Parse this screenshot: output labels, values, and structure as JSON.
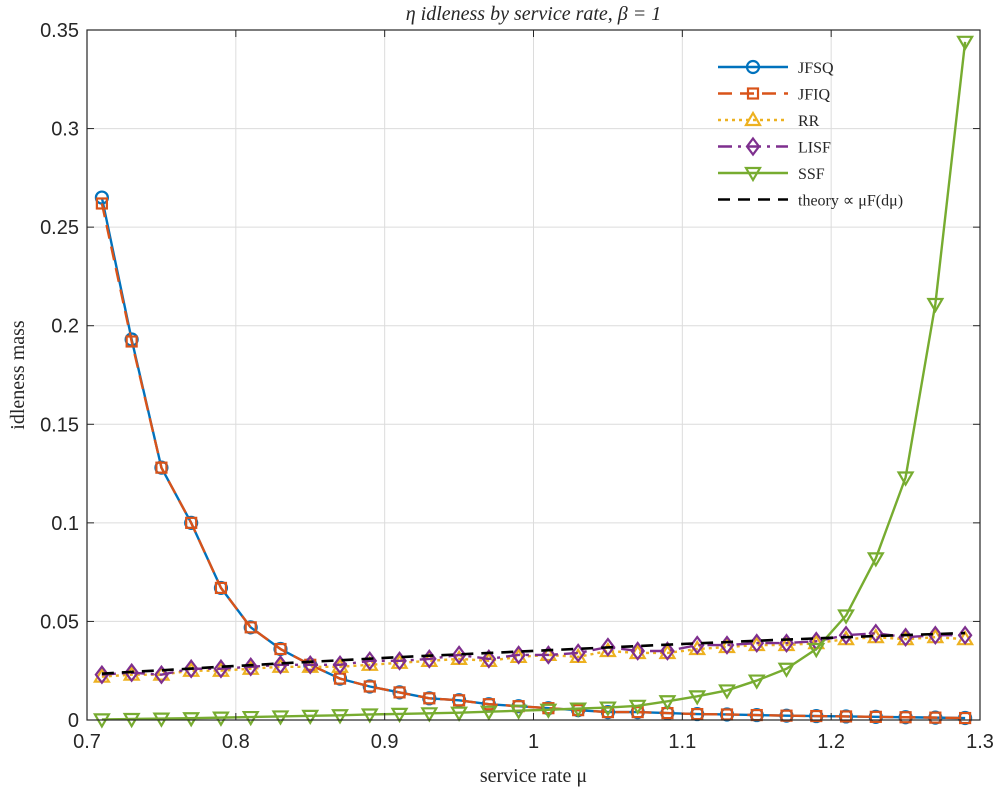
{
  "chart_data": {
    "type": "line",
    "title": "η idleness by service rate, β = 1",
    "xlabel": "service rate μ",
    "ylabel": "idleness mass",
    "xlim": [
      0.7,
      1.3
    ],
    "ylim": [
      0,
      0.35
    ],
    "xticks": [
      "0.7",
      "0.8",
      "0.9",
      "1",
      "1.1",
      "1.2",
      "1.3"
    ],
    "yticks": [
      "0",
      "0.05",
      "0.1",
      "0.15",
      "0.2",
      "0.25",
      "0.3",
      "0.35"
    ],
    "grid": true,
    "legend_position": "top-right",
    "x": [
      0.71,
      0.73,
      0.75,
      0.77,
      0.79,
      0.81,
      0.83,
      0.85,
      0.87,
      0.89,
      0.91,
      0.93,
      0.95,
      0.97,
      0.99,
      1.01,
      1.03,
      1.05,
      1.07,
      1.09,
      1.11,
      1.13,
      1.15,
      1.17,
      1.19,
      1.21,
      1.23,
      1.25,
      1.27,
      1.29
    ],
    "series": [
      {
        "name": "JFSQ",
        "color": "#0072bd",
        "dash": "solid",
        "marker": "circle",
        "values": [
          0.265,
          0.193,
          0.128,
          0.1,
          0.067,
          0.047,
          0.036,
          0.028,
          0.021,
          0.017,
          0.014,
          0.011,
          0.01,
          0.008,
          0.007,
          0.006,
          0.005,
          0.004,
          0.004,
          0.0035,
          0.003,
          0.0028,
          0.0025,
          0.0022,
          0.002,
          0.0018,
          0.0016,
          0.0014,
          0.0012,
          0.001
        ]
      },
      {
        "name": "JFIQ",
        "color": "#d95319",
        "dash": "dashed",
        "marker": "square",
        "values": [
          0.262,
          0.192,
          0.128,
          0.1,
          0.067,
          0.047,
          0.036,
          0.028,
          0.021,
          0.017,
          0.014,
          0.011,
          0.01,
          0.008,
          0.007,
          0.006,
          0.005,
          0.004,
          0.004,
          0.0035,
          0.003,
          0.0028,
          0.0025,
          0.0022,
          0.002,
          0.0018,
          0.0016,
          0.0014,
          0.0012,
          0.001
        ]
      },
      {
        "name": "RR",
        "color": "#edb120",
        "dash": "dotted",
        "marker": "triangle-up",
        "values": [
          0.022,
          0.023,
          0.023,
          0.025,
          0.025,
          0.026,
          0.027,
          0.027,
          0.027,
          0.028,
          0.029,
          0.03,
          0.031,
          0.03,
          0.032,
          0.033,
          0.032,
          0.035,
          0.034,
          0.034,
          0.036,
          0.037,
          0.038,
          0.038,
          0.039,
          0.041,
          0.042,
          0.041,
          0.042,
          0.041
        ]
      },
      {
        "name": "LISF",
        "color": "#7e2f8e",
        "dash": "dashdot",
        "marker": "diamond",
        "values": [
          0.023,
          0.024,
          0.023,
          0.026,
          0.026,
          0.027,
          0.028,
          0.028,
          0.028,
          0.03,
          0.03,
          0.031,
          0.033,
          0.031,
          0.033,
          0.033,
          0.034,
          0.037,
          0.035,
          0.035,
          0.038,
          0.038,
          0.039,
          0.039,
          0.04,
          0.043,
          0.044,
          0.042,
          0.043,
          0.043
        ]
      },
      {
        "name": "SSF",
        "color": "#77ac30",
        "dash": "solid",
        "marker": "triangle-down",
        "values": [
          0.0003,
          0.0005,
          0.0007,
          0.0009,
          0.0012,
          0.0015,
          0.0018,
          0.0021,
          0.0024,
          0.0028,
          0.0031,
          0.0034,
          0.0037,
          0.0042,
          0.0047,
          0.0052,
          0.0058,
          0.0063,
          0.0072,
          0.0095,
          0.012,
          0.015,
          0.02,
          0.026,
          0.036,
          0.053,
          0.082,
          0.123,
          0.211,
          0.344
        ]
      },
      {
        "name": "theory ∝ μF(dμ)",
        "color": "#000000",
        "dash": "longdash",
        "marker": "none",
        "values": [
          0.0235,
          0.0244,
          0.0252,
          0.0261,
          0.027,
          0.0278,
          0.0287,
          0.0295,
          0.0303,
          0.0311,
          0.0319,
          0.0326,
          0.0333,
          0.034,
          0.0347,
          0.0354,
          0.0361,
          0.0368,
          0.0375,
          0.0382,
          0.0389,
          0.0395,
          0.0402,
          0.0408,
          0.0414,
          0.042,
          0.0426,
          0.0431,
          0.0436,
          0.0441
        ]
      }
    ]
  }
}
